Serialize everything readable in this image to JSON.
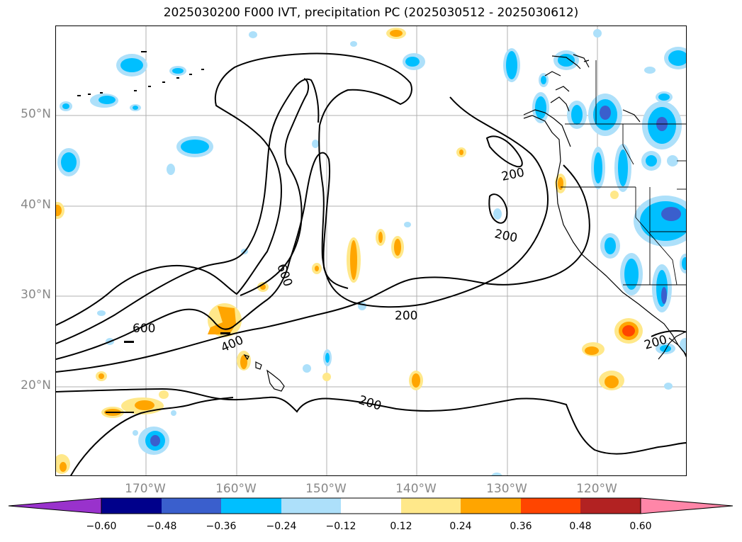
{
  "title": "2025030200 F000 IVT, precipitation PC (2025030512 - 2025030612)",
  "lat_labels": [
    "50°N",
    "40°N",
    "30°N",
    "20°N"
  ],
  "lon_labels": [
    "170°W",
    "160°W",
    "150°W",
    "140°W",
    "130°W",
    "120°W"
  ],
  "contour_labels": [
    "600",
    "600",
    "400",
    "200",
    "200",
    "200",
    "200",
    "200"
  ],
  "colorbar": {
    "ticks": [
      "−0.60",
      "−0.48",
      "−0.36",
      "−0.24",
      "−0.12",
      "0.12",
      "0.24",
      "0.36",
      "0.48",
      "0.60"
    ],
    "colors": [
      "#9932CC",
      "#00008B",
      "#3A5FCD",
      "#00BFFF",
      "#ADE0FA",
      "#FFFFFF",
      "#FFE88A",
      "#FFA500",
      "#FF4500",
      "#B22222",
      "#FF86A8"
    ]
  }
}
